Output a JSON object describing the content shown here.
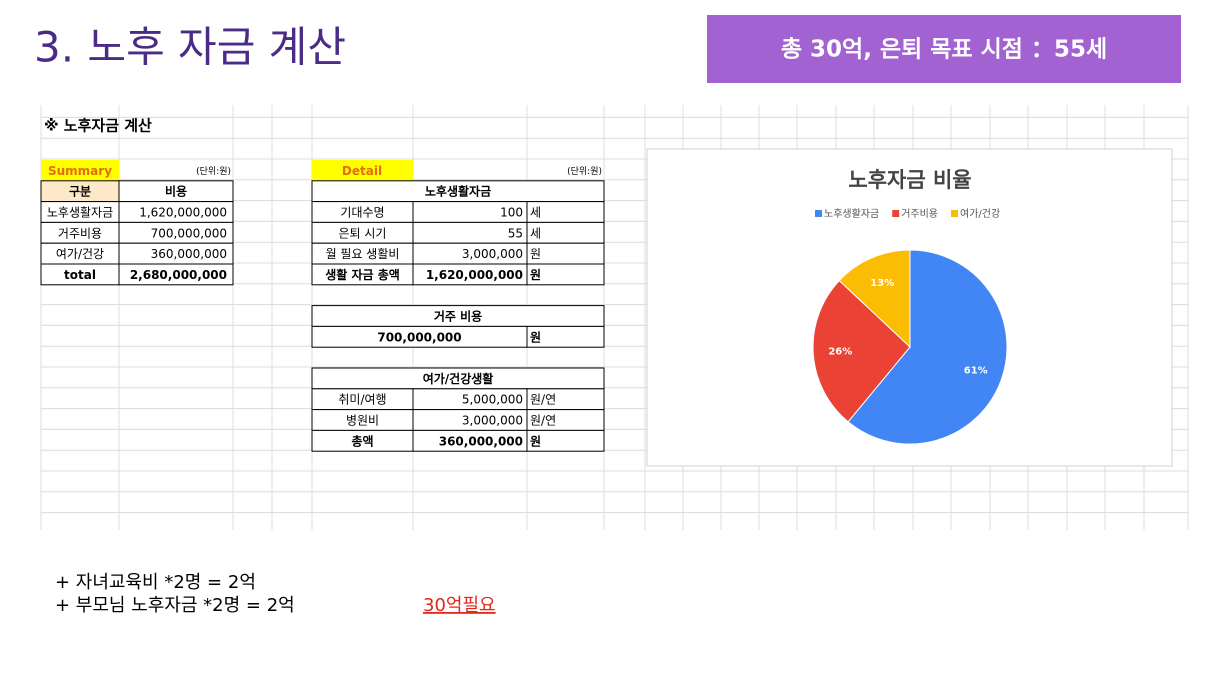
{
  "header": {
    "title": "3. 노후 자금 계산",
    "badge": "총 30억, 은퇴 목표 시점 ：55세"
  },
  "sheet": {
    "heading": "※ 노후자금 계산",
    "summary": {
      "label": "Summary",
      "unit": "(단위:원)",
      "columns": [
        "구분",
        "비용"
      ],
      "rows": [
        [
          "노후생활자금",
          "1,620,000,000"
        ],
        [
          "거주비용",
          "700,000,000"
        ],
        [
          "여가/건강",
          "360,000,000"
        ],
        [
          "total",
          "2,680,000,000"
        ]
      ]
    },
    "detail": {
      "label": "Detail",
      "unit": "(단위:원)",
      "living": {
        "title": "노후생활자금",
        "rows": [
          [
            "기대수명",
            "100",
            "세"
          ],
          [
            "은퇴 시기",
            "55",
            "세"
          ],
          [
            "월 필요 생활비",
            "3,000,000",
            "원"
          ],
          [
            "생활 자금 총액",
            "1,620,000,000",
            "원"
          ]
        ]
      },
      "housing": {
        "title": "거주 비용",
        "rows": [
          [
            "700,000,000",
            "원"
          ]
        ]
      },
      "leisure": {
        "title": "여가/건강생활",
        "rows": [
          [
            "취미/여행",
            "5,000,000",
            "원/연"
          ],
          [
            "병원비",
            "3,000,000",
            "원/연"
          ],
          [
            "총액",
            "360,000,000",
            "원"
          ]
        ]
      }
    }
  },
  "chart_data": {
    "type": "pie",
    "title": "노후자금 비율",
    "categories": [
      "노후생활자금",
      "거주비용",
      "여가/건강"
    ],
    "values": [
      61,
      26,
      13
    ],
    "value_labels": [
      "61%",
      "26%",
      "13%"
    ],
    "colors": [
      "#4285f4",
      "#ea4335",
      "#fbbc04"
    ]
  },
  "notes": {
    "lines": [
      "+ 자녀교육비 *2명 = 2억",
      "+ 부모님 노후자금 *2명 = 2억"
    ],
    "callout": "30억필요"
  }
}
